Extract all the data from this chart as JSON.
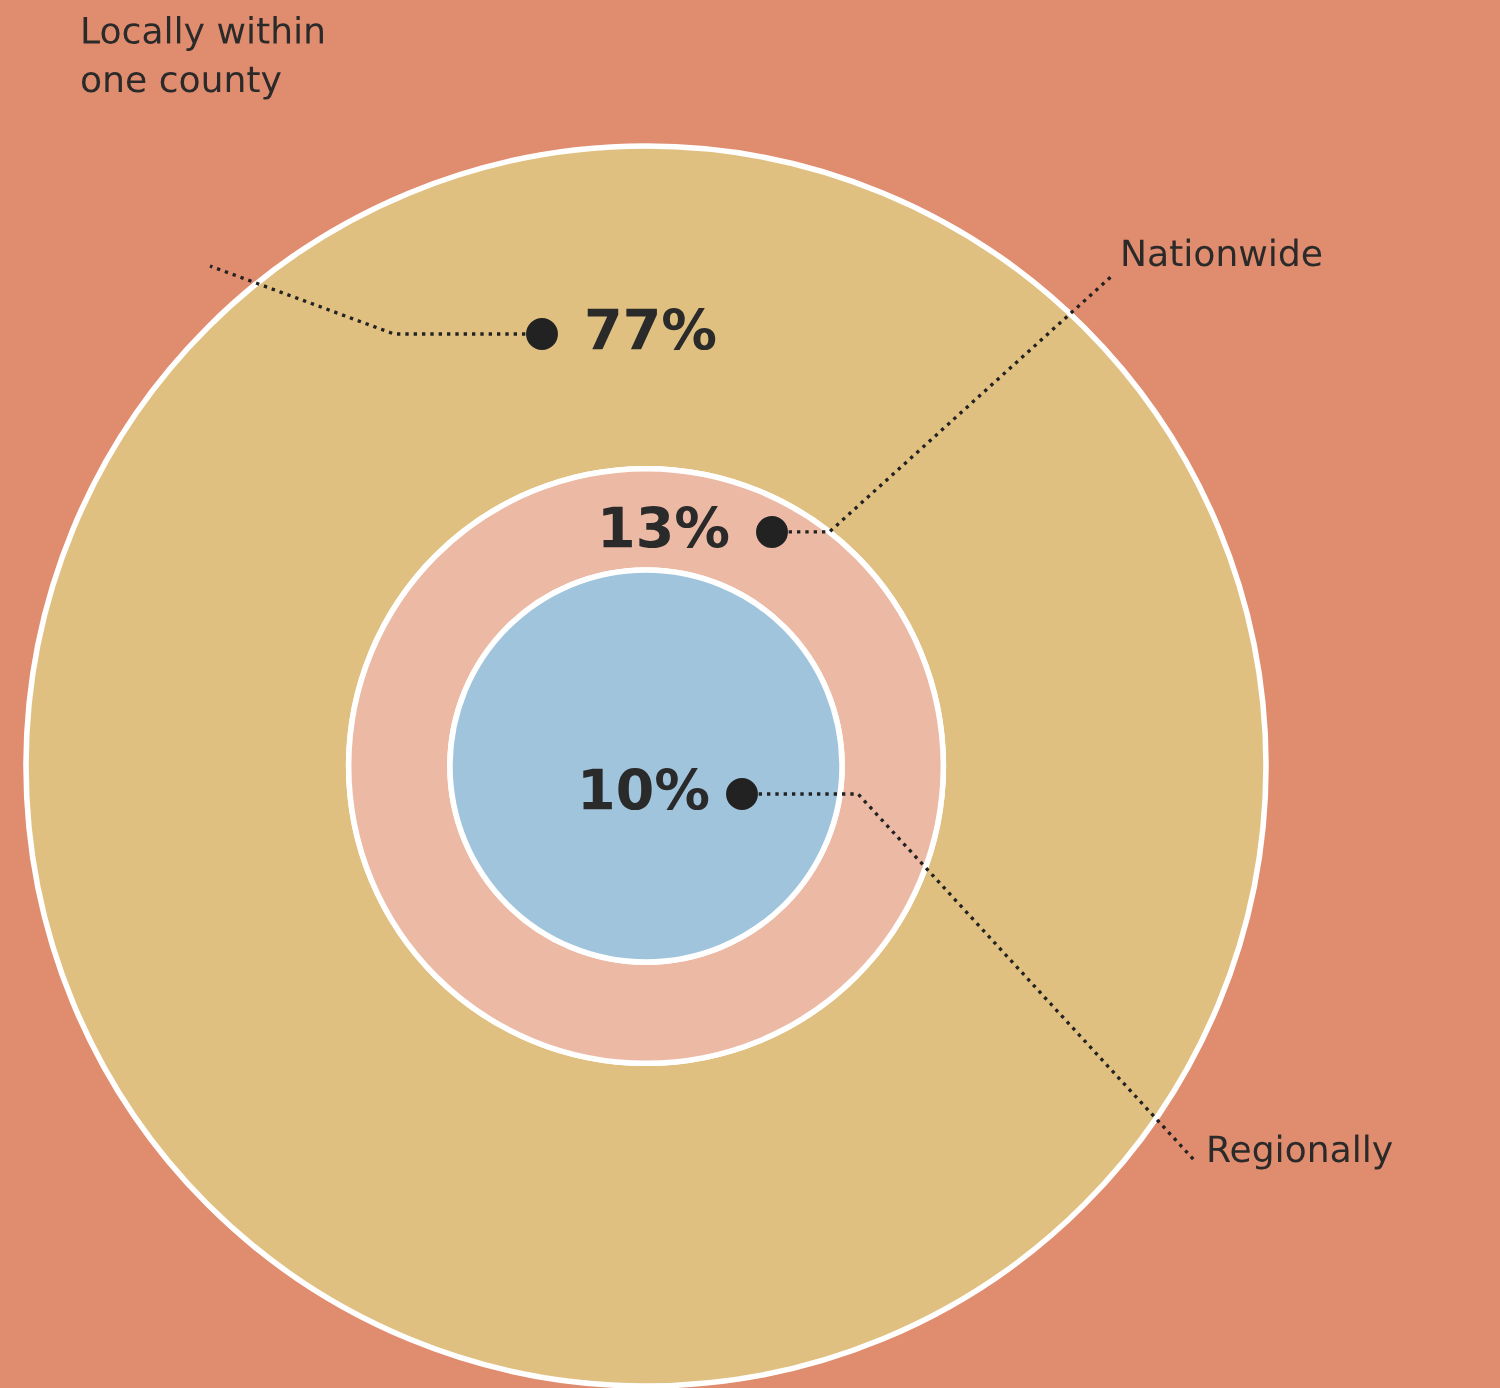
{
  "chart_data": {
    "type": "other",
    "categories": [
      "Locally within\none county",
      "Nationwide",
      "Regionally"
    ],
    "values": [
      77,
      13,
      10
    ],
    "value_labels": [
      "77%",
      "13%",
      "10%"
    ],
    "colors": [
      "#e0c080",
      "#ecb9a4",
      "#9fc4dc"
    ]
  }
}
